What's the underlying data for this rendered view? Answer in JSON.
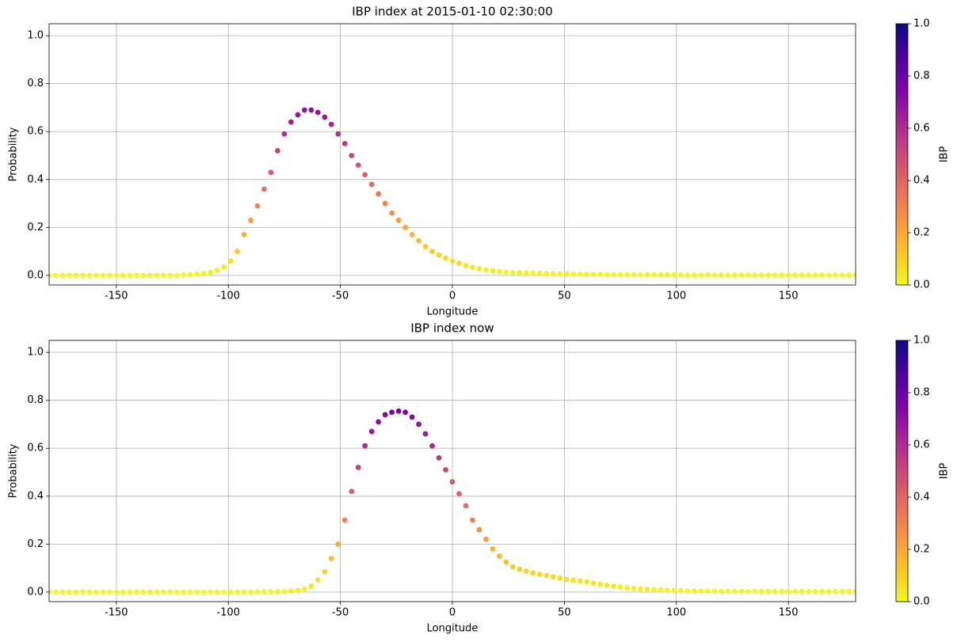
{
  "chart_data": [
    {
      "type": "scatter",
      "title": "IBP index at 2015-01-10 02:30:00",
      "xlabel": "Longitude",
      "ylabel": "Probability",
      "colormap": "plasma_r",
      "grid": true,
      "xlim": [
        -180,
        180
      ],
      "ylim": [
        -0.04,
        1.05
      ],
      "xticks": [
        -150,
        -100,
        -50,
        0,
        50,
        100,
        150
      ],
      "yticks": [
        {
          "value": 0,
          "label": "0.0"
        },
        0.2,
        0.4,
        0.6,
        0.8,
        {
          "value": 1,
          "label": "1.0"
        }
      ],
      "colorbar": {
        "label": "IBP",
        "lim": [
          0,
          1
        ],
        "ticks": [
          {
            "value": 0,
            "label": "0.0"
          },
          0.2,
          0.4,
          0.6,
          0.8,
          {
            "value": 1,
            "label": "1.0"
          }
        ]
      },
      "x": [
        -180,
        -177,
        -174,
        -171,
        -168,
        -165,
        -162,
        -159,
        -156,
        -153,
        -150,
        -147,
        -144,
        -141,
        -138,
        -135,
        -132,
        -129,
        -126,
        -123,
        -120,
        -117,
        -114,
        -111,
        -108,
        -105,
        -102,
        -99,
        -96,
        -93,
        -90,
        -87,
        -84,
        -81,
        -78,
        -75,
        -72,
        -69,
        -66,
        -63,
        -60,
        -57,
        -54,
        -51,
        -48,
        -45,
        -42,
        -39,
        -36,
        -33,
        -30,
        -27,
        -24,
        -21,
        -18,
        -15,
        -12,
        -9,
        -6,
        -3,
        0,
        3,
        6,
        9,
        12,
        15,
        18,
        21,
        24,
        27,
        30,
        33,
        36,
        39,
        42,
        45,
        48,
        51,
        54,
        57,
        60,
        63,
        66,
        69,
        72,
        75,
        78,
        81,
        84,
        87,
        90,
        93,
        96,
        99,
        102,
        105,
        108,
        111,
        114,
        117,
        120,
        123,
        126,
        129,
        132,
        135,
        138,
        141,
        144,
        147,
        150,
        153,
        156,
        159,
        162,
        165,
        168,
        171,
        174,
        177,
        180
      ],
      "values": [
        0,
        0,
        0,
        0,
        0,
        0,
        0,
        0,
        0,
        0,
        0,
        0,
        0,
        0,
        0,
        0,
        0,
        0,
        0,
        0,
        0.002,
        0.003,
        0.005,
        0.008,
        0.013,
        0.022,
        0.035,
        0.06,
        0.1,
        0.17,
        0.23,
        0.29,
        0.36,
        0.43,
        0.52,
        0.59,
        0.64,
        0.67,
        0.69,
        0.69,
        0.68,
        0.66,
        0.63,
        0.59,
        0.55,
        0.5,
        0.46,
        0.42,
        0.38,
        0.34,
        0.3,
        0.26,
        0.23,
        0.2,
        0.17,
        0.145,
        0.12,
        0.1,
        0.085,
        0.072,
        0.06,
        0.05,
        0.041,
        0.034,
        0.028,
        0.023,
        0.019,
        0.016,
        0.014,
        0.012,
        0.011,
        0.01,
        0.009,
        0.008,
        0.007,
        0.007,
        0.006,
        0.006,
        0.005,
        0.005,
        0.004,
        0.004,
        0.004,
        0.003,
        0.003,
        0.003,
        0.003,
        0.002,
        0.002,
        0.002,
        0.002,
        0.002,
        0.002,
        0.002,
        0.002,
        0.001,
        0.001,
        0.001,
        0.001,
        0.001,
        0.001,
        0.001,
        0.001,
        0.001,
        0.001,
        0.001,
        0.001,
        0.001,
        0.001,
        0.001,
        0.001,
        0.001,
        0.001,
        0.001,
        0.001,
        0.001,
        0.001,
        0.001,
        0.001,
        0.001,
        0.001
      ]
    },
    {
      "type": "scatter",
      "title": "IBP index now",
      "xlabel": "Longitude",
      "ylabel": "Probability",
      "colormap": "plasma_r",
      "grid": true,
      "xlim": [
        -180,
        180
      ],
      "ylim": [
        -0.04,
        1.05
      ],
      "xticks": [
        -150,
        -100,
        -50,
        0,
        50,
        100,
        150
      ],
      "yticks": [
        {
          "value": 0,
          "label": "0.0"
        },
        0.2,
        0.4,
        0.6,
        0.8,
        {
          "value": 1,
          "label": "1.0"
        }
      ],
      "colorbar": {
        "label": "IBP",
        "lim": [
          0,
          1
        ],
        "ticks": [
          {
            "value": 0,
            "label": "0.0"
          },
          0.2,
          0.4,
          0.6,
          0.8,
          {
            "value": 1,
            "label": "1.0"
          }
        ]
      },
      "x": [
        -180,
        -177,
        -174,
        -171,
        -168,
        -165,
        -162,
        -159,
        -156,
        -153,
        -150,
        -147,
        -144,
        -141,
        -138,
        -135,
        -132,
        -129,
        -126,
        -123,
        -120,
        -117,
        -114,
        -111,
        -108,
        -105,
        -102,
        -99,
        -96,
        -93,
        -90,
        -87,
        -84,
        -81,
        -78,
        -75,
        -72,
        -69,
        -66,
        -63,
        -60,
        -57,
        -54,
        -51,
        -48,
        -45,
        -42,
        -39,
        -36,
        -33,
        -30,
        -27,
        -24,
        -21,
        -18,
        -15,
        -12,
        -9,
        -6,
        -3,
        0,
        3,
        6,
        9,
        12,
        15,
        18,
        21,
        24,
        27,
        30,
        33,
        36,
        39,
        42,
        45,
        48,
        51,
        54,
        57,
        60,
        63,
        66,
        69,
        72,
        75,
        78,
        81,
        84,
        87,
        90,
        93,
        96,
        99,
        102,
        105,
        108,
        111,
        114,
        117,
        120,
        123,
        126,
        129,
        132,
        135,
        138,
        141,
        144,
        147,
        150,
        153,
        156,
        159,
        162,
        165,
        168,
        171,
        174,
        177,
        180
      ],
      "values": [
        0,
        0,
        0,
        0,
        0,
        0,
        0,
        0,
        0,
        0,
        0,
        0,
        0,
        0,
        0,
        0,
        0,
        0,
        0,
        0,
        0,
        0,
        0,
        0,
        0,
        0,
        0,
        0,
        0,
        0,
        0,
        0.001,
        0.001,
        0.001,
        0.001,
        0.002,
        0.004,
        0.007,
        0.013,
        0.025,
        0.05,
        0.085,
        0.14,
        0.2,
        0.3,
        0.42,
        0.52,
        0.61,
        0.67,
        0.71,
        0.74,
        0.75,
        0.755,
        0.75,
        0.73,
        0.7,
        0.66,
        0.61,
        0.56,
        0.51,
        0.46,
        0.41,
        0.36,
        0.3,
        0.26,
        0.22,
        0.18,
        0.15,
        0.125,
        0.105,
        0.095,
        0.087,
        0.08,
        0.074,
        0.069,
        0.063,
        0.058,
        0.053,
        0.049,
        0.046,
        0.042,
        0.037,
        0.033,
        0.029,
        0.025,
        0.021,
        0.018,
        0.015,
        0.013,
        0.011,
        0.01,
        0.009,
        0.008,
        0.007,
        0.006,
        0.005,
        0.005,
        0.004,
        0.004,
        0.004,
        0.003,
        0.003,
        0.003,
        0.003,
        0.003,
        0.003,
        0.002,
        0.002,
        0.002,
        0.002,
        0.002,
        0.002,
        0.002,
        0.002,
        0.002,
        0.002,
        0.002,
        0.002,
        0.002,
        0.002,
        0.002
      ]
    }
  ]
}
